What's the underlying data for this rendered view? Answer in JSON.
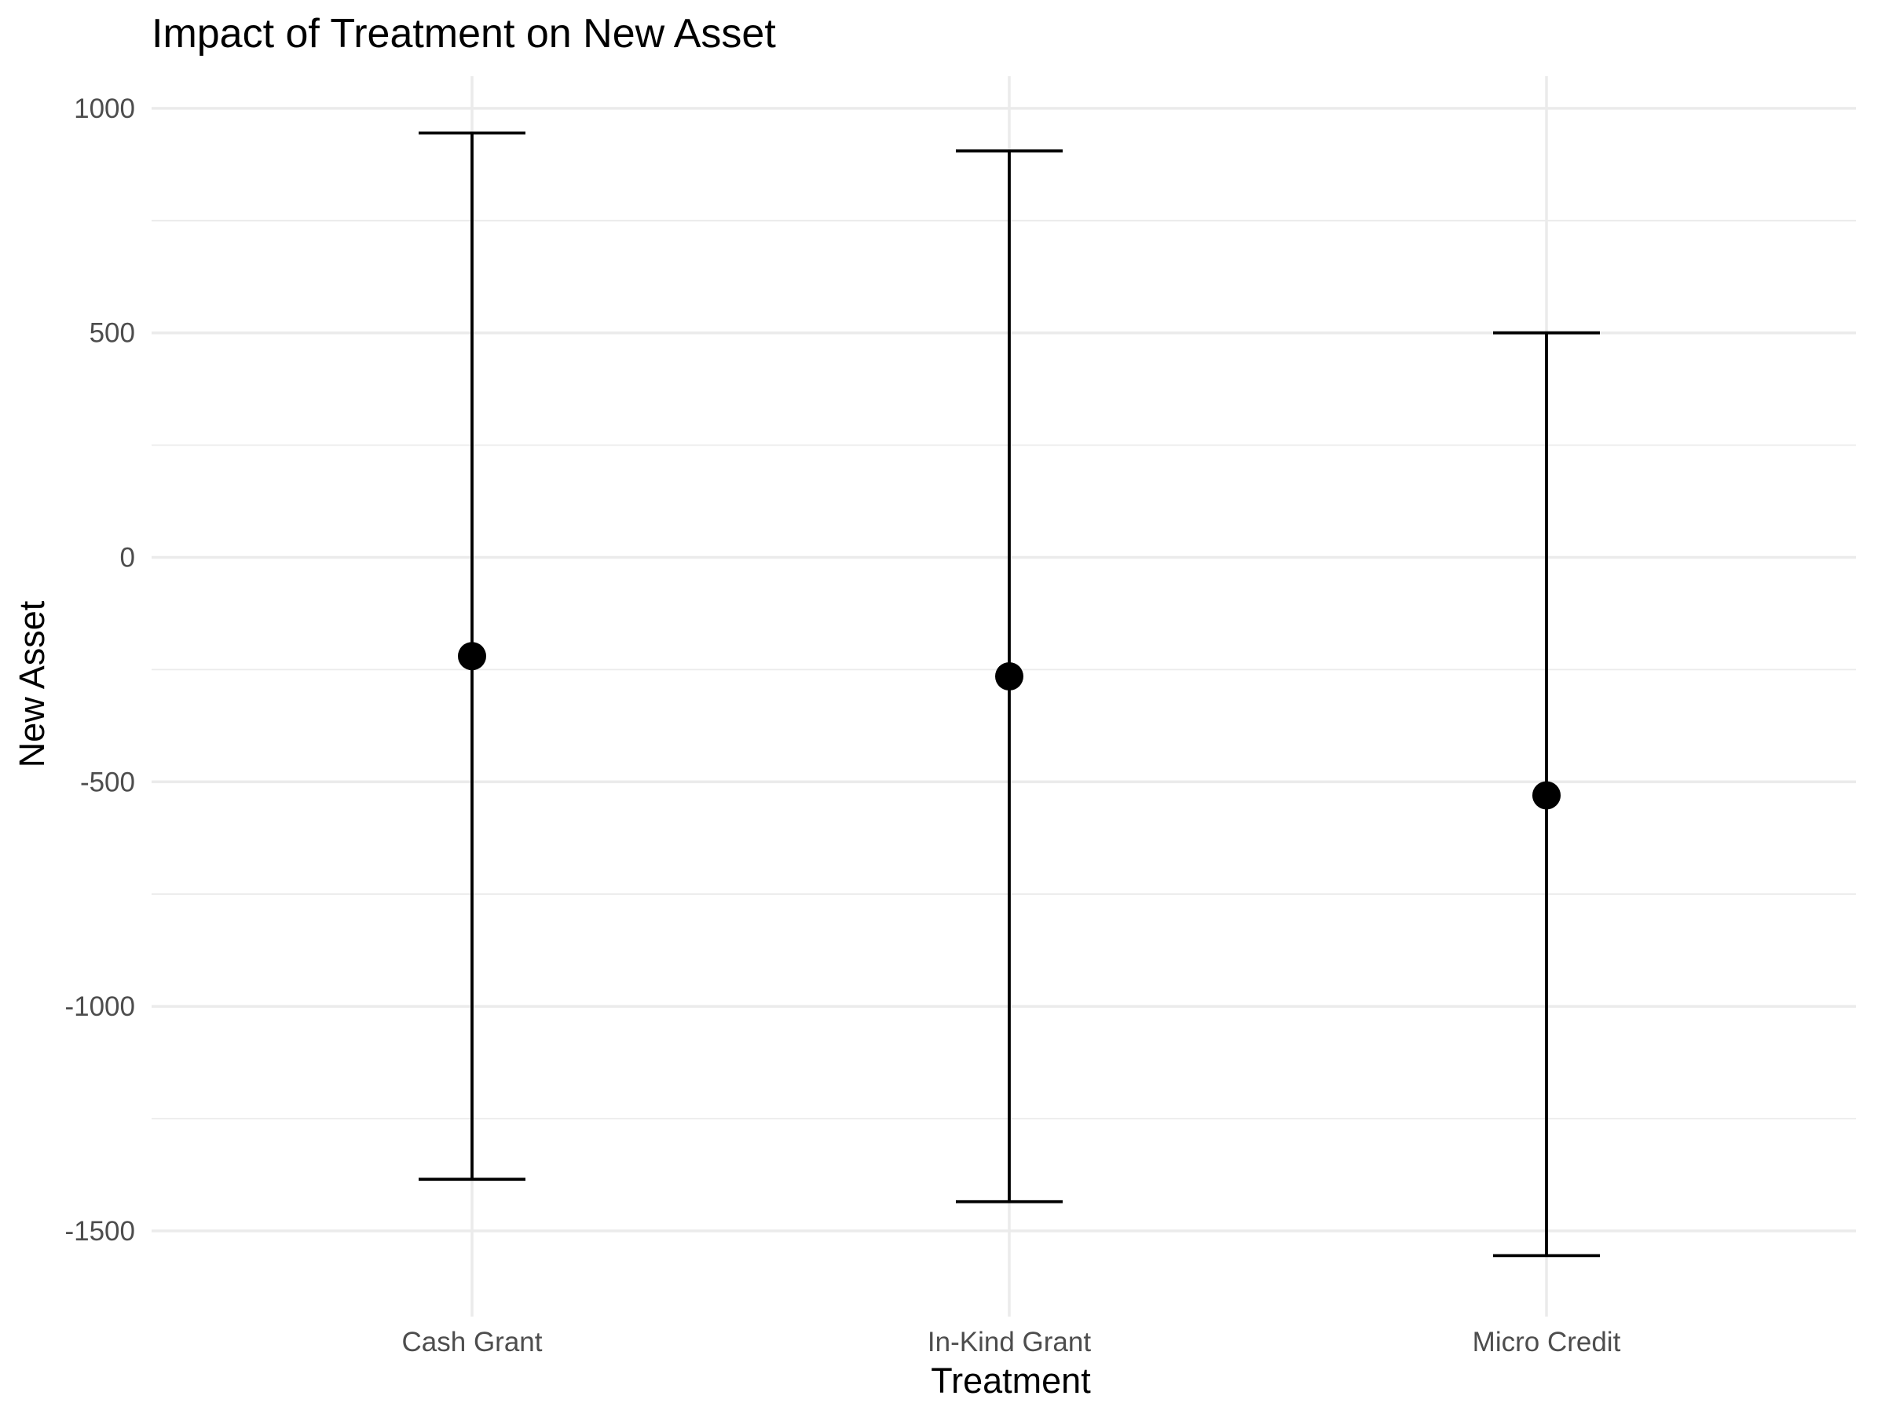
{
  "chart_data": {
    "type": "scatter",
    "title": "Impact of Treatment on New Asset",
    "xlabel": "Treatment",
    "ylabel": "New Asset",
    "categories": [
      "Cash Grant",
      "In-Kind Grant",
      "Micro Credit"
    ],
    "estimates": [
      -220,
      -265,
      -530
    ],
    "ci_lower": [
      -1385,
      -1435,
      -1555
    ],
    "ci_upper": [
      945,
      905,
      500
    ],
    "ylim": [
      -1670,
      1070
    ],
    "yticks": [
      -1500,
      -1000,
      -500,
      0,
      500,
      1000
    ],
    "ytick_labels": [
      "-1500",
      "-1000",
      "-500",
      "0",
      "500",
      "1000"
    ],
    "grid": true,
    "legend": "none",
    "colors": {
      "marks": "#000000",
      "grid": "#ebebeb",
      "tick_text": "#4d4d4d"
    }
  }
}
